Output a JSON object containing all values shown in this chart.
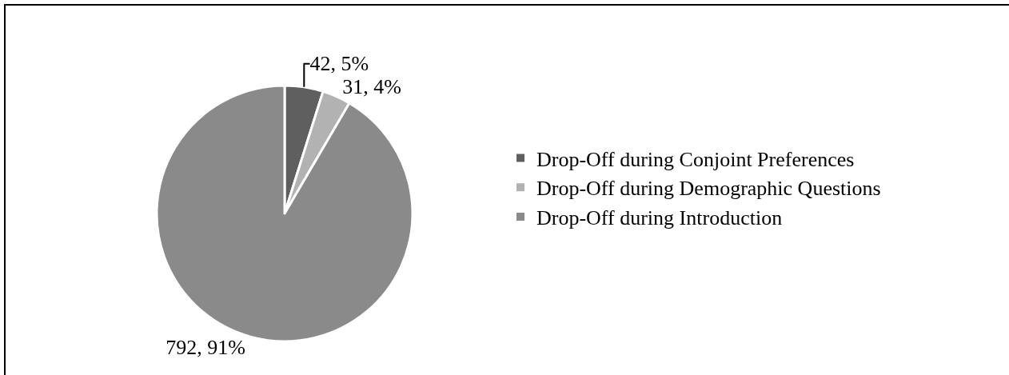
{
  "chart_data": {
    "type": "pie",
    "categories": [
      "Drop-Off during Conjoint Preferences",
      "Drop-Off during Demographic Questions",
      "Drop-Off during Introduction"
    ],
    "values": [
      42,
      31,
      792
    ],
    "colors": [
      "#5f5f5f",
      "#b2b2b2",
      "#8a8a8a"
    ],
    "value_labels": [
      "42, 5%",
      "31, 4%",
      "792, 91%"
    ],
    "legend": "right"
  }
}
